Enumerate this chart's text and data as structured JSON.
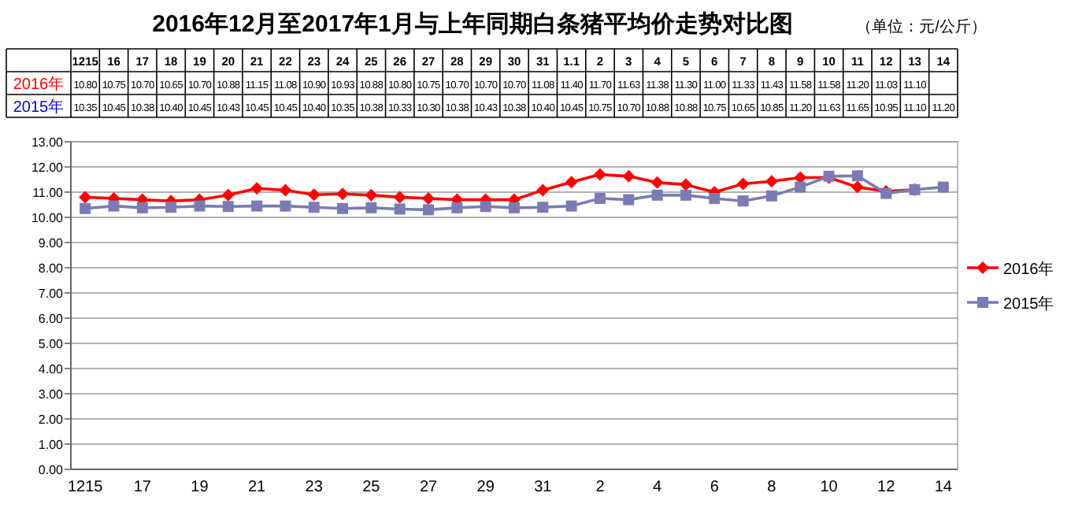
{
  "chart_data": {
    "type": "line",
    "title": "2016年12月至2017年1月与上年同期白条猪平均价走势对比图",
    "subtitle": "（单位：元/公斤）",
    "categories": [
      "1215",
      "16",
      "17",
      "18",
      "19",
      "20",
      "21",
      "22",
      "23",
      "24",
      "25",
      "26",
      "27",
      "28",
      "29",
      "30",
      "31",
      "1.1",
      "2",
      "3",
      "4",
      "5",
      "6",
      "7",
      "8",
      "9",
      "10",
      "11",
      "12",
      "13",
      "14"
    ],
    "series": [
      {
        "name": "2016年",
        "color": "#ff0000",
        "marker": "diamond",
        "values": [
          10.8,
          10.75,
          10.7,
          10.65,
          10.7,
          10.88,
          11.15,
          11.08,
          10.9,
          10.93,
          10.88,
          10.8,
          10.75,
          10.7,
          10.7,
          10.7,
          11.08,
          11.4,
          11.7,
          11.63,
          11.38,
          11.3,
          11.0,
          11.33,
          11.43,
          11.58,
          11.58,
          11.2,
          11.03,
          11.1,
          null
        ],
        "value_labels": [
          "10.80",
          "10.75",
          "10.70",
          "10.65",
          "10.70",
          "10.88",
          "11.15",
          "11.08",
          "10.90",
          "10.93",
          "10.88",
          "10.80",
          "10.75",
          "10.70",
          "10.70",
          "10.70",
          "11.08",
          "11.40",
          "11.70",
          "11.63",
          "11.38",
          "11.30",
          "11.00",
          "11.33",
          "11.43",
          "11.58",
          "11.58",
          "11.20",
          "11.03",
          "11.10",
          null
        ]
      },
      {
        "name": "2015年",
        "color": "#7b7bb3",
        "marker": "square",
        "values": [
          10.35,
          10.45,
          10.38,
          10.4,
          10.45,
          10.43,
          10.45,
          10.45,
          10.4,
          10.35,
          10.38,
          10.33,
          10.3,
          10.38,
          10.43,
          10.38,
          10.4,
          10.45,
          10.75,
          10.7,
          10.88,
          10.88,
          10.75,
          10.65,
          10.85,
          11.2,
          11.63,
          11.65,
          10.95,
          11.1,
          11.2
        ],
        "value_labels": [
          "10.35",
          "10.45",
          "10.38",
          "10.40",
          "10.45",
          "10.43",
          "10.45",
          "10.45",
          "10.40",
          "10.35",
          "10.38",
          "10.33",
          "10.30",
          "10.38",
          "10.43",
          "10.38",
          "10.40",
          "10.45",
          "10.75",
          "10.70",
          "10.88",
          "10.88",
          "10.75",
          "10.65",
          "10.85",
          "11.20",
          "11.63",
          "11.65",
          "10.95",
          "11.10",
          "11.20"
        ]
      }
    ],
    "ylim": [
      0,
      13
    ],
    "yticks": [
      {
        "value": 0,
        "label": "0.00"
      },
      {
        "value": 1,
        "label": "1.00"
      },
      {
        "value": 2,
        "label": "2.00"
      },
      {
        "value": 3,
        "label": "3.00"
      },
      {
        "value": 4,
        "label": "4.00"
      },
      {
        "value": 5,
        "label": "5.00"
      },
      {
        "value": 6,
        "label": "6.00"
      },
      {
        "value": 7,
        "label": "7.00"
      },
      {
        "value": 8,
        "label": "8.00"
      },
      {
        "value": 9,
        "label": "9.00"
      },
      {
        "value": 10,
        "label": "10.00"
      },
      {
        "value": 11,
        "label": "11.00"
      },
      {
        "value": 12,
        "label": "12.00"
      },
      {
        "value": 13,
        "label": "13.00"
      }
    ],
    "grid": "y",
    "legend": "right",
    "line_style": "solid"
  }
}
